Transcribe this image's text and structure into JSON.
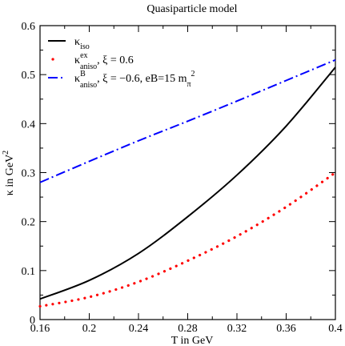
{
  "chart_data": {
    "type": "line",
    "title": "Quasiparticle model",
    "xlabel": "T in GeV",
    "ylabel": "κ in GeV²",
    "xlim": [
      0.16,
      0.4
    ],
    "ylim": [
      0,
      0.6
    ],
    "x_ticks": [
      "0.16",
      "0.2",
      "0.24",
      "0.28",
      "0.32",
      "0.36",
      "0.4"
    ],
    "y_ticks": [
      "0",
      "0.1",
      "0.2",
      "0.3",
      "0.4",
      "0.5",
      "0.6"
    ],
    "grid": false,
    "legend_position": "top-left",
    "series": [
      {
        "name": "κ_iso",
        "style": "solid",
        "color": "#000000",
        "x": [
          0.16,
          0.2,
          0.24,
          0.28,
          0.32,
          0.36,
          0.4
        ],
        "y": [
          0.042,
          0.08,
          0.135,
          0.21,
          0.295,
          0.395,
          0.515
        ]
      },
      {
        "name": "κ^ex_aniso, ξ = 0.6",
        "style": "dotted",
        "color": "#ff0000",
        "x": [
          0.16,
          0.2,
          0.24,
          0.28,
          0.32,
          0.36,
          0.4
        ],
        "y": [
          0.027,
          0.046,
          0.077,
          0.12,
          0.17,
          0.23,
          0.3
        ]
      },
      {
        "name": "κ^B_aniso, ξ = −0.6, eB=15 m_π²",
        "style": "dashdot",
        "color": "#0000ff",
        "x": [
          0.16,
          0.2,
          0.24,
          0.28,
          0.32,
          0.36,
          0.4
        ],
        "y": [
          0.28,
          0.323,
          0.365,
          0.405,
          0.446,
          0.488,
          0.53
        ]
      }
    ],
    "legend": [
      {
        "main": "κ",
        "sup": "",
        "sub": "iso",
        "rest": ""
      },
      {
        "main": "κ",
        "sup": "ex",
        "sub": "aniso",
        "rest": ", ξ = 0.6"
      },
      {
        "main": "κ",
        "sup": "B",
        "sub": "aniso",
        "rest": ", ξ = −0.6, eB=15 m"
      }
    ],
    "legend_extra": {
      "sub": "π",
      "sup": "2"
    }
  }
}
